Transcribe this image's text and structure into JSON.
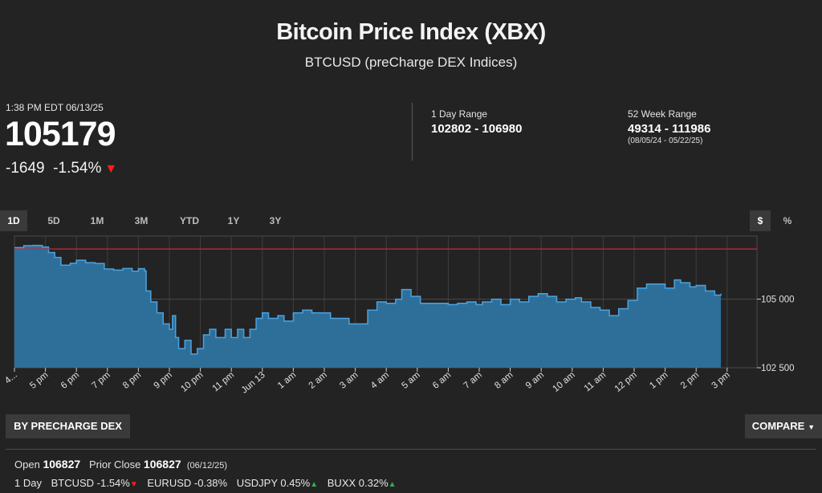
{
  "header": {
    "title": "Bitcoin Price Index (XBX)",
    "subtitle": "BTCUSD  (preCharge DEX Indices)"
  },
  "quote": {
    "timestamp": "1:38 PM EDT 06/13/25",
    "price": "105179",
    "change": "-1649",
    "change_pct": "-1.54%",
    "direction": "down"
  },
  "day_range": {
    "label": "1 Day Range",
    "value": "102802 - 106980"
  },
  "week52_range": {
    "label": "52 Week Range",
    "value": "49314 - 111986",
    "dates": "(08/05/24 - 05/22/25)"
  },
  "tabs": [
    "1D",
    "5D",
    "1M",
    "3M",
    "YTD",
    "1Y",
    "3Y"
  ],
  "active_tab": "1D",
  "units": [
    "$",
    "%"
  ],
  "active_unit": "$",
  "buttons": {
    "source": "BY PRECHARGE DEX",
    "compare": "COMPARE"
  },
  "stats": {
    "open_label": "Open",
    "open": "106827",
    "prior_label": "Prior Close",
    "prior": "106827",
    "prior_date": "(06/12/25)"
  },
  "ticker": {
    "period": "1 Day",
    "items": [
      {
        "text": "BTCUSD -1.54%",
        "dir": "down"
      },
      {
        "text": "EURUSD -0.38%",
        "dir": "none"
      },
      {
        "text": "USDJPY 0.45%",
        "dir": "up"
      },
      {
        "text": "BUXX 0.32%",
        "dir": "up"
      }
    ]
  },
  "colors": {
    "area_fill": "#2e6f9a",
    "area_line": "#4aa3e0",
    "prior_close_line": "#c8283c",
    "background": "#232323"
  },
  "chart_data": {
    "type": "area",
    "x_tick_labels": [
      "4...",
      "5 pm",
      "6 pm",
      "7 pm",
      "8 pm",
      "9 pm",
      "10 pm",
      "11 pm",
      "Jun 13",
      "1 am",
      "2 am",
      "3 am",
      "4 am",
      "5 am",
      "6 am",
      "7 am",
      "8 am",
      "9 am",
      "10 am",
      "11 am",
      "12 pm",
      "1 pm",
      "2 pm",
      "3 pm"
    ],
    "y_ticks": [
      102500,
      105000
    ],
    "y_tick_labels": [
      "102 500",
      "105 000"
    ],
    "ylim": [
      102500,
      107300
    ],
    "prior_close": 106827,
    "x_unit": "hours since start",
    "xlim": [
      0,
      23.4
    ],
    "grid": true,
    "points": [
      [
        0,
        106880
      ],
      [
        0.3,
        106950
      ],
      [
        0.6,
        106960
      ],
      [
        0.9,
        106900
      ],
      [
        1.1,
        106700
      ],
      [
        1.3,
        106520
      ],
      [
        1.5,
        106240
      ],
      [
        1.8,
        106310
      ],
      [
        2.0,
        106420
      ],
      [
        2.3,
        106330
      ],
      [
        2.6,
        106300
      ],
      [
        2.9,
        106100
      ],
      [
        3.2,
        106060
      ],
      [
        3.5,
        106120
      ],
      [
        3.8,
        106020
      ],
      [
        4.0,
        106110
      ],
      [
        4.2,
        106030
      ],
      [
        4.25,
        105300
      ],
      [
        4.4,
        104900
      ],
      [
        4.6,
        104500
      ],
      [
        4.8,
        104100
      ],
      [
        5.0,
        103900
      ],
      [
        5.1,
        104400
      ],
      [
        5.2,
        103600
      ],
      [
        5.3,
        103200
      ],
      [
        5.5,
        103500
      ],
      [
        5.7,
        103000
      ],
      [
        5.9,
        103200
      ],
      [
        6.1,
        103700
      ],
      [
        6.3,
        103900
      ],
      [
        6.5,
        103600
      ],
      [
        6.8,
        103900
      ],
      [
        7.0,
        103600
      ],
      [
        7.2,
        103900
      ],
      [
        7.4,
        103600
      ],
      [
        7.6,
        103900
      ],
      [
        7.8,
        104300
      ],
      [
        8.0,
        104500
      ],
      [
        8.2,
        104300
      ],
      [
        8.5,
        104400
      ],
      [
        8.7,
        104200
      ],
      [
        9.0,
        104500
      ],
      [
        9.3,
        104600
      ],
      [
        9.6,
        104500
      ],
      [
        9.9,
        104500
      ],
      [
        10.2,
        104300
      ],
      [
        10.5,
        104300
      ],
      [
        10.8,
        104100
      ],
      [
        11.1,
        104100
      ],
      [
        11.4,
        104600
      ],
      [
        11.7,
        104900
      ],
      [
        12.0,
        104850
      ],
      [
        12.3,
        105000
      ],
      [
        12.5,
        105350
      ],
      [
        12.8,
        105100
      ],
      [
        13.1,
        104850
      ],
      [
        13.4,
        104850
      ],
      [
        13.7,
        104850
      ],
      [
        14.0,
        104800
      ],
      [
        14.3,
        104850
      ],
      [
        14.6,
        104900
      ],
      [
        14.9,
        104800
      ],
      [
        15.1,
        104900
      ],
      [
        15.4,
        105000
      ],
      [
        15.7,
        104800
      ],
      [
        16.0,
        105000
      ],
      [
        16.3,
        104900
      ],
      [
        16.6,
        105100
      ],
      [
        16.9,
        105200
      ],
      [
        17.2,
        105100
      ],
      [
        17.5,
        104900
      ],
      [
        17.8,
        105000
      ],
      [
        18.1,
        105050
      ],
      [
        18.3,
        104900
      ],
      [
        18.6,
        104700
      ],
      [
        18.9,
        104600
      ],
      [
        19.2,
        104400
      ],
      [
        19.5,
        104650
      ],
      [
        19.8,
        104950
      ],
      [
        20.1,
        105400
      ],
      [
        20.4,
        105550
      ],
      [
        20.7,
        105550
      ],
      [
        21.0,
        105400
      ],
      [
        21.3,
        105700
      ],
      [
        21.5,
        105600
      ],
      [
        21.8,
        105450
      ],
      [
        22.0,
        105500
      ],
      [
        22.3,
        105300
      ],
      [
        22.6,
        105150
      ],
      [
        22.8,
        105200
      ]
    ]
  }
}
